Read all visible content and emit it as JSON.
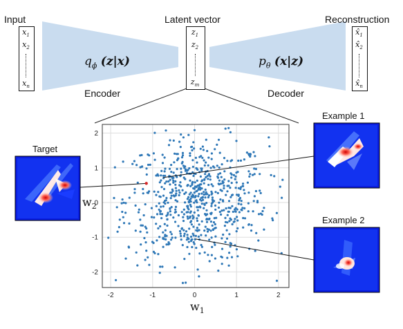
{
  "labels": {
    "input": "Input",
    "latent": "Latent vector",
    "reconstruction": "Reconstruction",
    "encoder": "Encoder",
    "decoder": "Decoder",
    "target": "Target",
    "example1": "Example 1",
    "example2": "Example 2"
  },
  "formulas": {
    "encoder_fn": "q",
    "encoder_sub": "ϕ",
    "encoder_arg": "(z|x)",
    "decoder_fn": "p",
    "decoder_sub": "θ",
    "decoder_arg": "(x|z)"
  },
  "vectors": {
    "input": [
      "x1",
      "x2",
      "xn"
    ],
    "latent": [
      "z1",
      "z2",
      "zm"
    ],
    "reconstruction": [
      "x̂1",
      "x̂2",
      "x̂n"
    ]
  },
  "chart_data": {
    "type": "scatter",
    "xlabel": "w1",
    "ylabel": "w2",
    "xlim": [
      -2.2,
      2.25
    ],
    "ylim": [
      -2.45,
      2.25
    ],
    "xticks": [
      -2,
      -1,
      0,
      1,
      2
    ],
    "yticks": [
      -2,
      -1,
      0,
      1,
      2
    ],
    "grid": true,
    "color": "#2f78b7",
    "highlight_color": "#d62728",
    "highlight": {
      "x": -1.15,
      "y": 0.55
    },
    "example1": {
      "x": -0.75,
      "y": 0.72
    },
    "example2": {
      "x": 0.02,
      "y": -1.05
    }
  }
}
